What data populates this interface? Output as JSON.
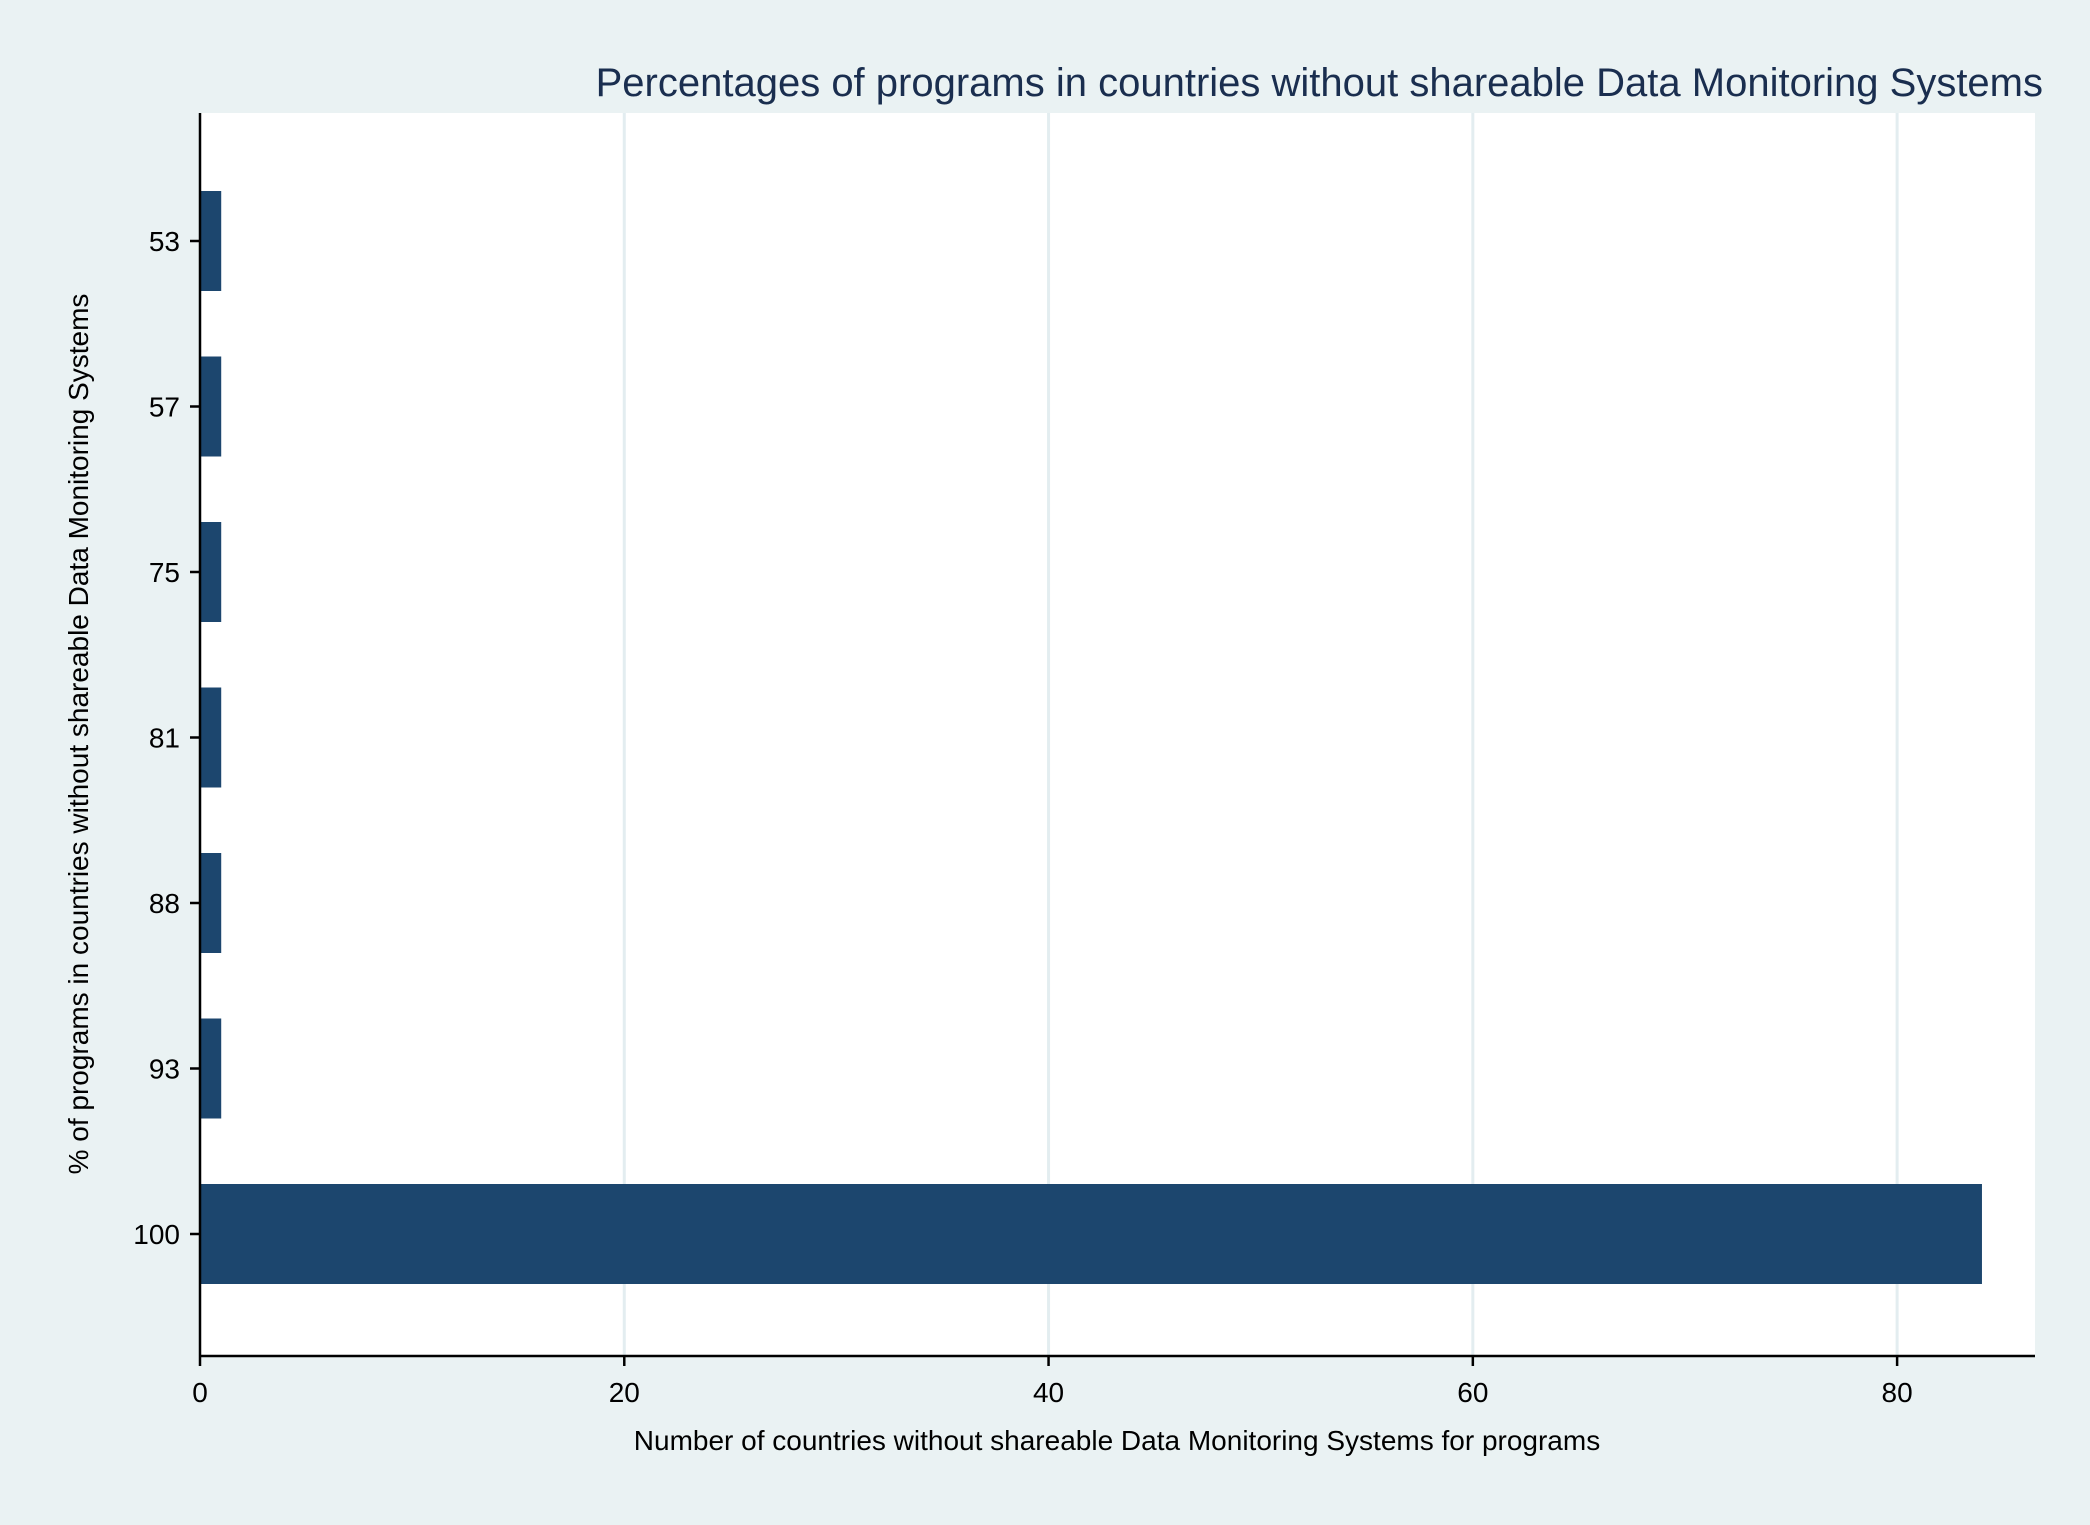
{
  "chart_data": {
    "type": "bar",
    "orientation": "horizontal",
    "title": "Percentages of programs in countries without shareable Data Monitoring Systems",
    "xlabel": "Number of countries without shareable Data Monitoring Systems for programs",
    "ylabel": "% of programs in countries without shareable Data Monitoring Systems",
    "categories": [
      "53",
      "57",
      "75",
      "81",
      "88",
      "93",
      "100"
    ],
    "values": [
      1,
      1,
      1,
      1,
      1,
      1,
      84
    ],
    "xlim": [
      0,
      86.5
    ],
    "xticks": [
      "0",
      "20",
      "40",
      "60",
      "80"
    ],
    "grid": true,
    "legend": "none",
    "colors": {
      "bar": "#1c466e",
      "background": "#eaf2f3",
      "plot_area": "#ffffff",
      "title": "#1a2e4f",
      "grid": "#e3edf0"
    }
  }
}
